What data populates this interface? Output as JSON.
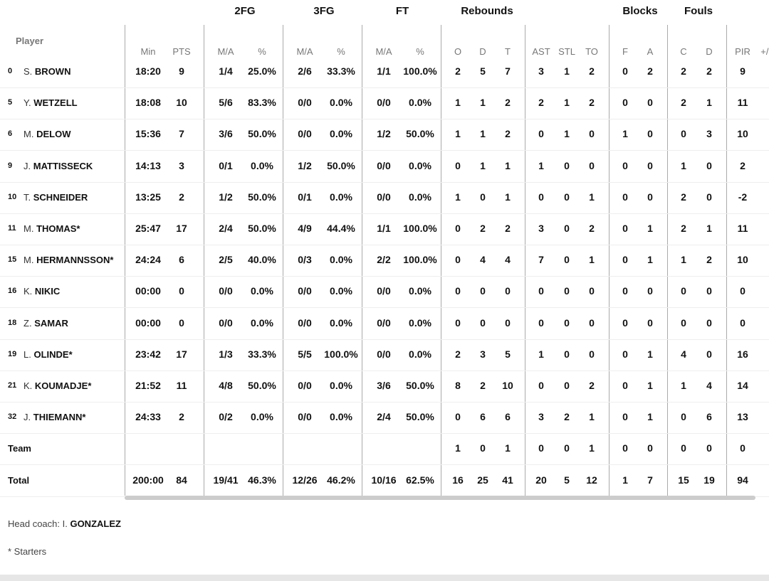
{
  "header": {
    "player_label": "Player",
    "groups": [
      {
        "key": "2fg",
        "label": "2FG"
      },
      {
        "key": "3fg",
        "label": "3FG"
      },
      {
        "key": "ft",
        "label": "FT"
      },
      {
        "key": "rebounds",
        "label": "Rebounds"
      },
      {
        "key": "blocks",
        "label": "Blocks"
      },
      {
        "key": "fouls",
        "label": "Fouls"
      }
    ],
    "columns": [
      "Min",
      "PTS",
      "M/A",
      "%",
      "M/A",
      "%",
      "M/A",
      "%",
      "O",
      "D",
      "T",
      "AST",
      "STL",
      "TO",
      "F",
      "A",
      "C",
      "D",
      "PIR",
      "+/-"
    ]
  },
  "players": [
    {
      "num": "0",
      "first": "S.",
      "last": "BROWN",
      "stats": [
        "18:20",
        "9",
        "1/4",
        "25.0%",
        "2/6",
        "33.3%",
        "1/1",
        "100.0%",
        "2",
        "5",
        "7",
        "3",
        "1",
        "2",
        "0",
        "2",
        "2",
        "2",
        "9",
        ""
      ]
    },
    {
      "num": "5",
      "first": "Y.",
      "last": "WETZELL",
      "stats": [
        "18:08",
        "10",
        "5/6",
        "83.3%",
        "0/0",
        "0.0%",
        "0/0",
        "0.0%",
        "1",
        "1",
        "2",
        "2",
        "1",
        "2",
        "0",
        "0",
        "2",
        "1",
        "11",
        ""
      ]
    },
    {
      "num": "6",
      "first": "M.",
      "last": "DELOW",
      "stats": [
        "15:36",
        "7",
        "3/6",
        "50.0%",
        "0/0",
        "0.0%",
        "1/2",
        "50.0%",
        "1",
        "1",
        "2",
        "0",
        "1",
        "0",
        "1",
        "0",
        "0",
        "3",
        "10",
        ""
      ]
    },
    {
      "num": "9",
      "first": "J.",
      "last": "MATTISSECK",
      "stats": [
        "14:13",
        "3",
        "0/1",
        "0.0%",
        "1/2",
        "50.0%",
        "0/0",
        "0.0%",
        "0",
        "1",
        "1",
        "1",
        "0",
        "0",
        "0",
        "0",
        "1",
        "0",
        "2",
        ""
      ]
    },
    {
      "num": "10",
      "first": "T.",
      "last": "SCHNEIDER",
      "stats": [
        "13:25",
        "2",
        "1/2",
        "50.0%",
        "0/1",
        "0.0%",
        "0/0",
        "0.0%",
        "1",
        "0",
        "1",
        "0",
        "0",
        "1",
        "0",
        "0",
        "2",
        "0",
        "-2",
        ""
      ]
    },
    {
      "num": "11",
      "first": "M.",
      "last": "THOMAS*",
      "stats": [
        "25:47",
        "17",
        "2/4",
        "50.0%",
        "4/9",
        "44.4%",
        "1/1",
        "100.0%",
        "0",
        "2",
        "2",
        "3",
        "0",
        "2",
        "0",
        "1",
        "2",
        "1",
        "11",
        ""
      ]
    },
    {
      "num": "15",
      "first": "M.",
      "last": "HERMANNSSON*",
      "stats": [
        "24:24",
        "6",
        "2/5",
        "40.0%",
        "0/3",
        "0.0%",
        "2/2",
        "100.0%",
        "0",
        "4",
        "4",
        "7",
        "0",
        "1",
        "0",
        "1",
        "1",
        "2",
        "10",
        ""
      ]
    },
    {
      "num": "16",
      "first": "K.",
      "last": "NIKIC",
      "stats": [
        "00:00",
        "0",
        "0/0",
        "0.0%",
        "0/0",
        "0.0%",
        "0/0",
        "0.0%",
        "0",
        "0",
        "0",
        "0",
        "0",
        "0",
        "0",
        "0",
        "0",
        "0",
        "0",
        ""
      ]
    },
    {
      "num": "18",
      "first": "Z.",
      "last": "SAMAR",
      "stats": [
        "00:00",
        "0",
        "0/0",
        "0.0%",
        "0/0",
        "0.0%",
        "0/0",
        "0.0%",
        "0",
        "0",
        "0",
        "0",
        "0",
        "0",
        "0",
        "0",
        "0",
        "0",
        "0",
        ""
      ]
    },
    {
      "num": "19",
      "first": "L.",
      "last": "OLINDE*",
      "stats": [
        "23:42",
        "17",
        "1/3",
        "33.3%",
        "5/5",
        "100.0%",
        "0/0",
        "0.0%",
        "2",
        "3",
        "5",
        "1",
        "0",
        "0",
        "0",
        "1",
        "4",
        "0",
        "16",
        ""
      ]
    },
    {
      "num": "21",
      "first": "K.",
      "last": "KOUMADJE*",
      "stats": [
        "21:52",
        "11",
        "4/8",
        "50.0%",
        "0/0",
        "0.0%",
        "3/6",
        "50.0%",
        "8",
        "2",
        "10",
        "0",
        "0",
        "2",
        "0",
        "1",
        "1",
        "4",
        "14",
        ""
      ]
    },
    {
      "num": "32",
      "first": "J.",
      "last": "THIEMANN*",
      "stats": [
        "24:33",
        "2",
        "0/2",
        "0.0%",
        "0/0",
        "0.0%",
        "2/4",
        "50.0%",
        "0",
        "6",
        "6",
        "3",
        "2",
        "1",
        "0",
        "1",
        "0",
        "6",
        "13",
        ""
      ]
    }
  ],
  "team_row": {
    "label": "Team",
    "stats": [
      "",
      "",
      "",
      "",
      "",
      "",
      "",
      "",
      "1",
      "0",
      "1",
      "0",
      "0",
      "1",
      "0",
      "0",
      "0",
      "0",
      "0",
      ""
    ]
  },
  "total_row": {
    "label": "Total",
    "stats": [
      "200:00",
      "84",
      "19/41",
      "46.3%",
      "12/26",
      "46.2%",
      "10/16",
      "62.5%",
      "16",
      "25",
      "41",
      "20",
      "5",
      "12",
      "1",
      "7",
      "15",
      "19",
      "94",
      ""
    ]
  },
  "footer": {
    "coach_prefix": "Head coach: I.",
    "coach_last": "GONZALEZ",
    "starters_note": "* Starters"
  }
}
